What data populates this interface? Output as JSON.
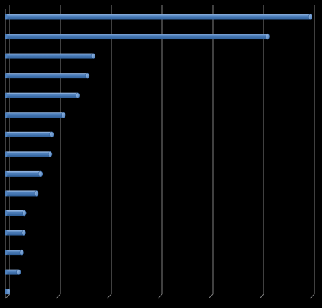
{
  "chart_data": {
    "type": "bar",
    "orientation": "horizontal",
    "style": "3d-cylinder",
    "title": "",
    "xlabel": "",
    "ylabel": "",
    "categories": [
      "",
      "",
      "",
      "",
      "",
      "",
      "",
      "",
      "",
      "",
      "",
      "",
      "",
      "",
      ""
    ],
    "values": [
      60,
      51.6,
      17.3,
      16.1,
      14.2,
      11.4,
      9.1,
      8.8,
      6.9,
      6.1,
      3.7,
      3.6,
      3.2,
      2.6,
      0.2
    ],
    "xlim": [
      0,
      60
    ],
    "x_gridline_interval": 10,
    "grid": true,
    "legend": "none",
    "colors": {
      "background": "#000000",
      "bar": "#4f81bd",
      "bar_highlight": "#9cbce4",
      "bar_shadow": "#2e5d96",
      "gridline": "#808080"
    }
  }
}
